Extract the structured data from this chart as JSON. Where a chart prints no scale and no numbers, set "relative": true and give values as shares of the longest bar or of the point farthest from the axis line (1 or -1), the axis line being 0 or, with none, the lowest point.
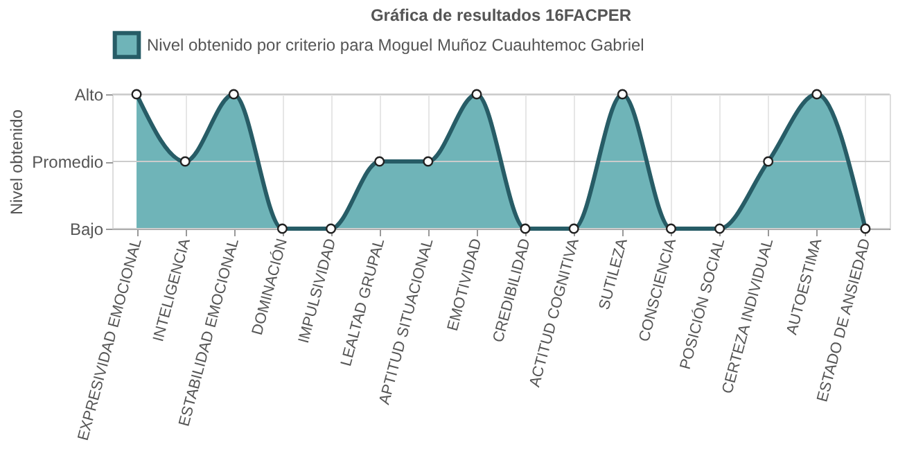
{
  "chart_data": {
    "type": "area",
    "title": "Gráfica de resultados 16FACPER",
    "ylabel": "Nivel obtenido",
    "categories": [
      "EXPRESIVIDAD EMOCIONAL",
      "INTELIGENCIA",
      "ESTABILIDAD EMOCIONAL",
      "DOMINACIÓN",
      "IMPULSIVIDAD",
      "LEALTAD GRUPAL",
      "APTITUD SITUACIONAL",
      "EMOTIVIDAD",
      "CREDIBILIDAD",
      "ACTITUD COGNITIVA",
      "SUTILEZA",
      "CONSCIENCIA",
      "POSICIÓN SOCIAL",
      "CERTEZA INDIVIDUAL",
      "AUTOESTIMA",
      "ESTADO DE ANSIEDAD"
    ],
    "y_categories": [
      "Alto",
      "Promedio",
      "Bajo"
    ],
    "relative": true,
    "series": [
      {
        "name": "Nivel obtenido por criterio para Moguel Muñoz Cuauhtemoc Gabriel",
        "color": "#6fb4b8",
        "values": [
          1,
          0.5,
          1,
          0,
          0,
          0.5,
          0.5,
          1,
          0,
          0,
          1,
          0,
          0,
          0.5,
          1,
          0
        ]
      }
    ],
    "ref_lines": [
      {
        "axis": "y",
        "value": 1,
        "color": "#cccccc"
      },
      {
        "axis": "y",
        "value": 0.5,
        "color": "#cccccc"
      },
      {
        "axis": "y",
        "value": 0,
        "color": "#cccccc"
      }
    ],
    "grid": "x",
    "legend": "top",
    "marker": "circle"
  }
}
